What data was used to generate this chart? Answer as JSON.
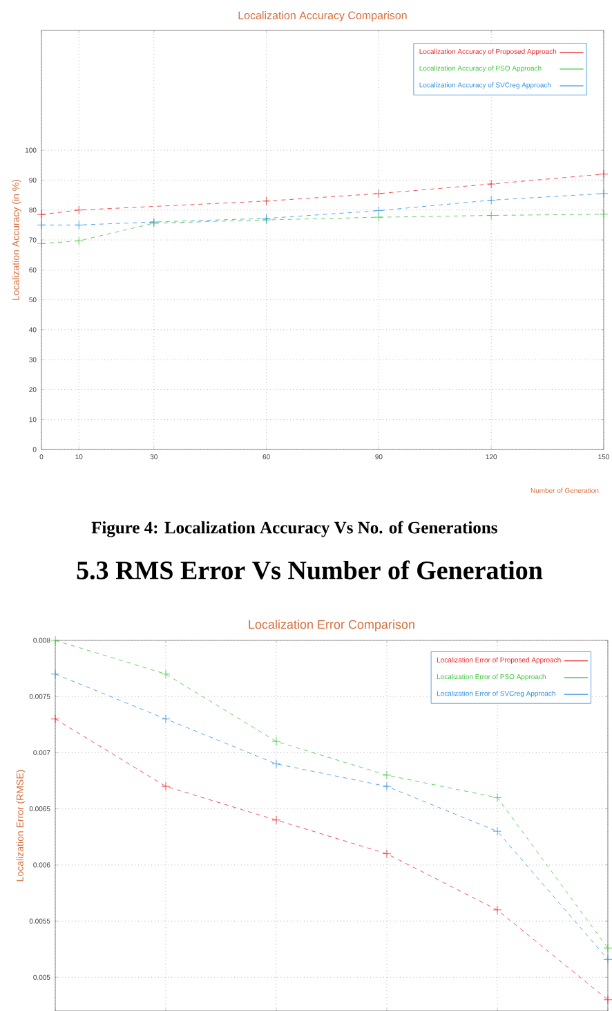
{
  "chart_data": [
    {
      "type": "line",
      "title": "Localization Accuracy Comparison",
      "xlabel": "Number of Generation",
      "ylabel": "Localization Accuracy (in %)",
      "xlim": [
        0,
        150
      ],
      "xticks": [
        0,
        10,
        30,
        60,
        90,
        120,
        150
      ],
      "ylim": [
        0,
        140
      ],
      "yticks": [
        0,
        10,
        20,
        30,
        40,
        50,
        60,
        70,
        80,
        90,
        100
      ],
      "grid": true,
      "legend": "top right",
      "line_style": "dashed",
      "annotations": [
        "Figure 4: Localization Accuracy Vs No. of Generations"
      ],
      "series": [
        {
          "name": "Localization Accuracy of Proposed Approach",
          "color": "#e8262b",
          "marker": "cross",
          "x": [
            0,
            10,
            60,
            90,
            120,
            150
          ],
          "values": [
            78.5,
            80,
            83,
            85.5,
            88.7,
            92
          ]
        },
        {
          "name": "Localization Accuracy of PSO Approach",
          "color": "#3cc43c",
          "marker": "cross",
          "x": [
            0,
            10,
            30,
            60,
            90,
            120,
            150
          ],
          "values": [
            68.8,
            69.7,
            75.6,
            76.7,
            77.6,
            78.2,
            78.6
          ]
        },
        {
          "name": "Localization Accuracy of SVCreg Approach",
          "color": "#2e8fe0",
          "marker": "cross",
          "x": [
            0,
            10,
            30,
            60,
            90,
            120,
            150
          ],
          "values": [
            75,
            75,
            76,
            77.2,
            79.8,
            83.3,
            85.5
          ]
        }
      ]
    },
    {
      "type": "line",
      "title": "Localization Error Comparison",
      "ylabel": "Localization Error (RMSE)",
      "categories": [
        null,
        null,
        null,
        null,
        null,
        null
      ],
      "ylim": [
        0.0047,
        0.008
      ],
      "yticks": [
        0.005,
        0.0055,
        0.006,
        0.0065,
        0.007,
        0.0075,
        0.008
      ],
      "grid": true,
      "legend": "top right",
      "line_style": "dashed",
      "annotations": [
        "5.3 RMS Error Vs Number of Generation"
      ],
      "series": [
        {
          "name": "Localization Error of Proposed Approach",
          "color": "#e8262b",
          "marker": "cross",
          "values": [
            0.0073,
            0.0067,
            0.0064,
            0.0061,
            0.0056,
            0.0048
          ]
        },
        {
          "name": "Localization Error of PSO Approach",
          "color": "#3cc43c",
          "marker": "cross",
          "values": [
            0.008,
            0.0077,
            0.0071,
            0.0068,
            0.0066,
            0.00526
          ]
        },
        {
          "name": "Localization Error of SVCreg Approach",
          "color": "#2e8fe0",
          "marker": "cross",
          "values": [
            0.0077,
            0.0073,
            0.0069,
            0.0067,
            0.0063,
            0.00516
          ]
        }
      ]
    }
  ]
}
